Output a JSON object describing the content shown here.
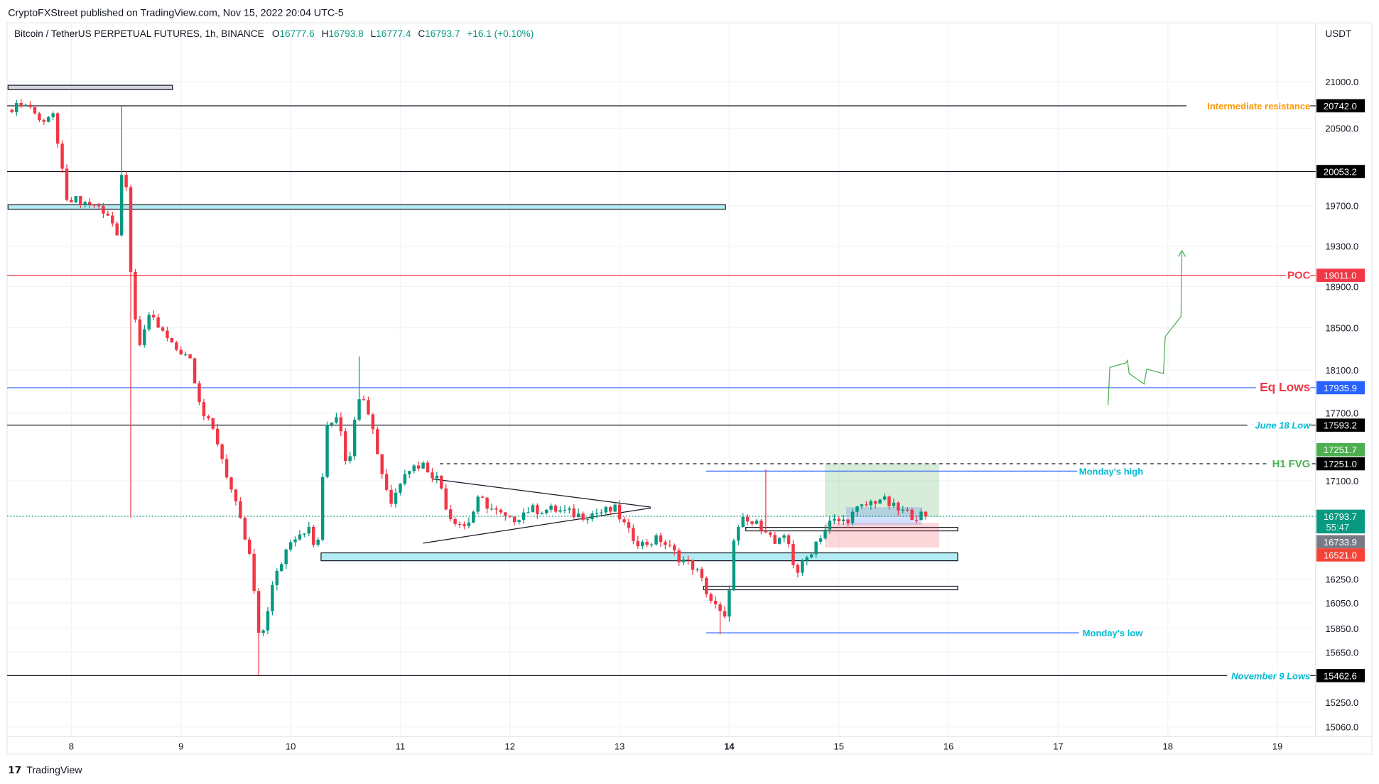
{
  "header": {
    "published": "CryptoFXStreet published on TradingView.com, Nov 15, 2022 20:04 UTC-5",
    "symbol": "Bitcoin / TetherUS PERPETUAL FUTURES, 1h, BINANCE",
    "o_label": "O",
    "o": "16777.6",
    "h_label": "H",
    "h": "16793.8",
    "l_label": "L",
    "l": "16777.4",
    "c_label": "C",
    "c": "16793.7",
    "change": "+16.1 (+0.10%)"
  },
  "footer": {
    "logo": "TradingView"
  },
  "colors": {
    "up": "#089981",
    "down": "#f23645",
    "blue": "#2962ff",
    "orange": "#ff9800",
    "cyan": "#00bcd4",
    "green": "#4caf50"
  },
  "chart_data": {
    "type": "candlestick",
    "currency": "USDT",
    "y_ticks": [
      [
        "21000.0",
        21000
      ],
      [
        "20500.0",
        20500
      ],
      [
        "19700.0",
        19700
      ],
      [
        "19300.0",
        19300
      ],
      [
        "18900.0",
        18900
      ],
      [
        "18500.0",
        18500
      ],
      [
        "18100.0",
        18100
      ],
      [
        "17700.0",
        17700
      ],
      [
        "17100.0",
        17100
      ],
      [
        "16250.0",
        16250
      ],
      [
        "16050.0",
        16050
      ],
      [
        "15850.0",
        15850
      ],
      [
        "15650.0",
        15650
      ],
      [
        "15250.0",
        15250
      ],
      [
        "15060.0",
        15060
      ]
    ],
    "x_ticks": [
      "8",
      "9",
      "10",
      "11",
      "12",
      "13",
      "14",
      "15",
      "16",
      "17",
      "18",
      "19"
    ],
    "close_anchors_hours_from_nov8": [
      [
        -13.7,
        20700
      ],
      [
        -9.8,
        20800
      ],
      [
        -6.9,
        20550
      ],
      [
        -4.0,
        20650
      ],
      [
        -1.2,
        19800
      ],
      [
        1.7,
        19750
      ],
      [
        5.6,
        19700
      ],
      [
        8.5,
        19600
      ],
      [
        10.4,
        19300
      ],
      [
        11.4,
        20450
      ],
      [
        12.7,
        19300
      ],
      [
        13.3,
        18700
      ],
      [
        15.2,
        18300
      ],
      [
        17.1,
        18650
      ],
      [
        20.0,
        18450
      ],
      [
        22.9,
        18300
      ],
      [
        25.8,
        18250
      ],
      [
        28.7,
        17700
      ],
      [
        31.6,
        17500
      ],
      [
        34.4,
        17100
      ],
      [
        37.3,
        16700
      ],
      [
        39.3,
        16400
      ],
      [
        41.2,
        15700
      ],
      [
        44.1,
        16200
      ],
      [
        47.9,
        16600
      ],
      [
        51.8,
        16700
      ],
      [
        53.7,
        16450
      ],
      [
        56.0,
        17600
      ],
      [
        58.5,
        17700
      ],
      [
        60.4,
        17200
      ],
      [
        63.3,
        17950
      ],
      [
        65.2,
        17700
      ],
      [
        68.1,
        17150
      ],
      [
        70.1,
        16900
      ],
      [
        72.9,
        17200
      ],
      [
        76.8,
        17250
      ],
      [
        80.6,
        17100
      ],
      [
        82.6,
        16800
      ],
      [
        86.4,
        16700
      ],
      [
        89.3,
        16950
      ],
      [
        92.2,
        16850
      ],
      [
        96.0,
        16750
      ],
      [
        99.9,
        16850
      ],
      [
        105.7,
        16850
      ],
      [
        111.4,
        16800
      ],
      [
        119.1,
        16850
      ],
      [
        122.0,
        16650
      ],
      [
        124.9,
        16550
      ],
      [
        128.8,
        16600
      ],
      [
        132.6,
        16450
      ],
      [
        136.5,
        16350
      ],
      [
        140.3,
        16050
      ],
      [
        143.2,
        15900
      ],
      [
        145.1,
        16600
      ],
      [
        147.0,
        16750
      ],
      [
        151.9,
        16700
      ],
      [
        153.8,
        16550
      ],
      [
        156.7,
        16600
      ],
      [
        158.6,
        16300
      ],
      [
        160.5,
        16400
      ],
      [
        163.4,
        16600
      ],
      [
        166.3,
        16750
      ],
      [
        169.2,
        16750
      ],
      [
        172.1,
        16850
      ],
      [
        176.9,
        16950
      ],
      [
        180.7,
        16850
      ],
      [
        184.6,
        16800
      ],
      [
        187.5,
        16793.7
      ]
    ],
    "wick_overrides": [
      [
        11,
        "high",
        20750
      ],
      [
        13,
        "low",
        16780
      ],
      [
        41,
        "low",
        15462.6
      ],
      [
        142,
        "low",
        15800
      ],
      [
        152,
        "high",
        17200
      ],
      [
        63,
        "high",
        18230
      ]
    ],
    "levels": [
      {
        "price": 20742.0,
        "label": "Intermediate resistance",
        "tag": "20742.0"
      },
      {
        "price": 20053.2,
        "label": "",
        "tag": "20053.2"
      },
      {
        "price": 19011.0,
        "label": "POC",
        "tag": "19011.0"
      },
      {
        "price": 17935.9,
        "label": "Eq Lows",
        "tag": "17935.9"
      },
      {
        "price": 17593.2,
        "label": "June 18 Low",
        "tag": "17593.2"
      },
      {
        "price": 17251.0,
        "label": "H1 FVG",
        "tag": "17251.0"
      },
      {
        "price": 15462.6,
        "label": "November 9 Lows",
        "tag": "15462.6"
      }
    ],
    "monday_high_label": "Monday's high",
    "monday_low_label": "Monday's low",
    "tags": {
      "fvg_top": "17251.7",
      "last": "16793.7",
      "countdown": "55:47",
      "entry": "16733.9",
      "stop": "16521.0"
    }
  }
}
